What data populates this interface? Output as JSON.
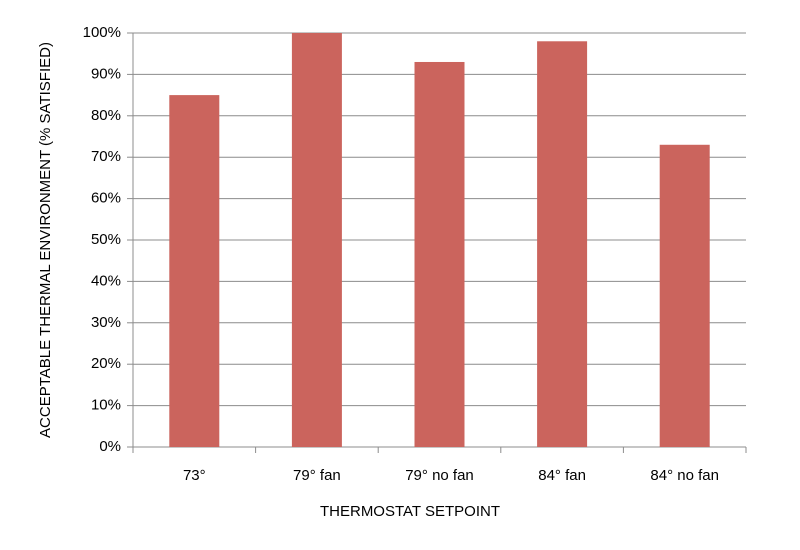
{
  "chart_data": {
    "type": "bar",
    "x_label": "THERMOSTAT SETPOINT",
    "y_label": "ACCEPTABLE THERMAL ENVIRONMENT (% SATISFIED)",
    "categories": [
      "73°",
      "79° fan",
      "79° no fan",
      "84° fan",
      "84° no fan"
    ],
    "values": [
      85,
      100,
      93,
      98,
      73
    ],
    "color": "#cb645d",
    "ylim": [
      0,
      100
    ],
    "yticks": [
      {
        "value": 0,
        "label": "0%"
      },
      {
        "value": 10,
        "label": "10%"
      },
      {
        "value": 20,
        "label": "20%"
      },
      {
        "value": 30,
        "label": "30%"
      },
      {
        "value": 40,
        "label": "40%"
      },
      {
        "value": 50,
        "label": "50%"
      },
      {
        "value": 60,
        "label": "60%"
      },
      {
        "value": 70,
        "label": "70%"
      },
      {
        "value": 80,
        "label": "80%"
      },
      {
        "value": 90,
        "label": "90%"
      },
      {
        "value": 100,
        "label": "100%"
      }
    ],
    "grid": true
  }
}
